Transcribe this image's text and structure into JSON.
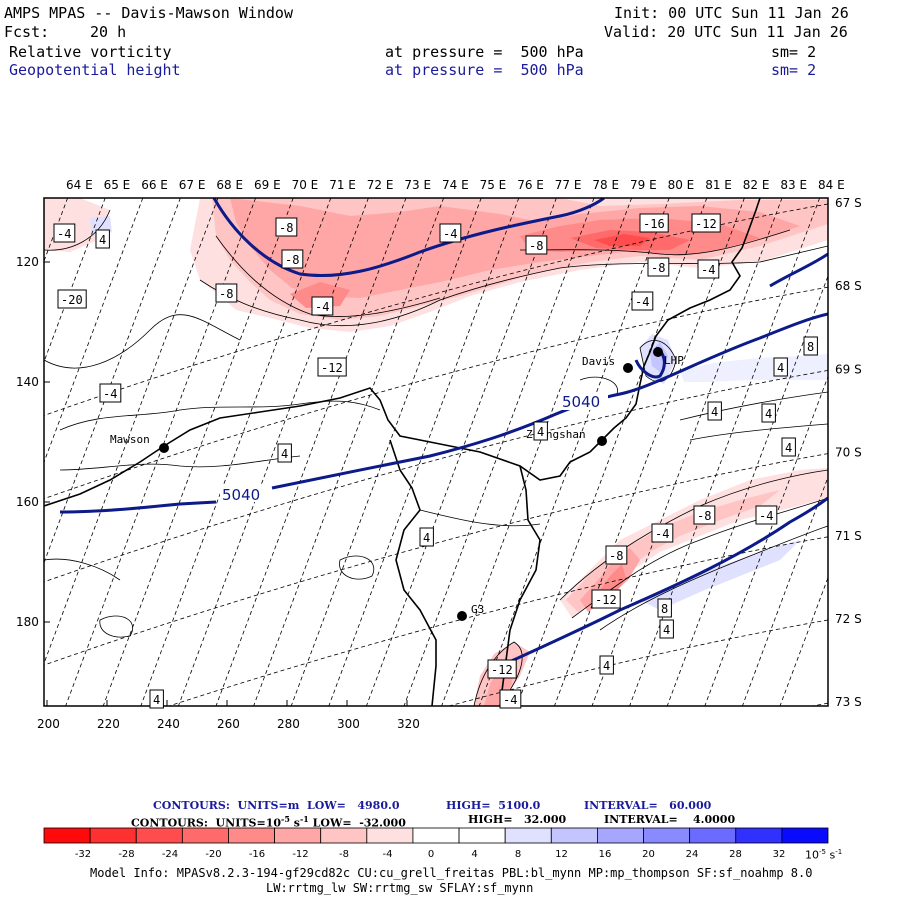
{
  "header": {
    "title": "AMPS MPAS -- Davis-Mawson Window",
    "fcst_label": "Fcst:",
    "fcst_value": "20 h",
    "init": "Init: 00 UTC Sun 11 Jan 26",
    "valid": "Valid: 20 UTC Sun 11 Jan 26"
  },
  "fields": [
    {
      "name": "Relative vorticity",
      "level": "at pressure =  500 hPa",
      "sm": "sm= 2",
      "color": "#000000"
    },
    {
      "name": "Geopotential height",
      "level": "at pressure =  500 hPa",
      "sm": "sm= 2",
      "color": "#1a1a9c"
    }
  ],
  "axes": {
    "top_lon": [
      "64 E",
      "65 E",
      "66 E",
      "67 E",
      "68 E",
      "69 E",
      "70 E",
      "71 E",
      "72 E",
      "73 E",
      "74 E",
      "75 E",
      "76 E",
      "77 E",
      "78 E",
      "79 E",
      "80 E",
      "81 E",
      "82 E",
      "83 E",
      "84 E"
    ],
    "right_lat": [
      "67 S",
      "68 S",
      "69 S",
      "70 S",
      "71 S",
      "72 S",
      "73 S"
    ],
    "bottom_x": [
      "200",
      "220",
      "240",
      "260",
      "280",
      "300",
      "320"
    ],
    "left_y": [
      "120",
      "140",
      "160",
      "180"
    ]
  },
  "stations": [
    {
      "name": "Mawson"
    },
    {
      "name": "Davis"
    },
    {
      "name": "LHP"
    },
    {
      "name": "Zhongshan"
    },
    {
      "name": "G3"
    }
  ],
  "contour_labels": {
    "height": [
      "5040",
      "5040"
    ],
    "vorticity": [
      "-4",
      "4",
      "-8",
      "-8",
      "-4",
      "-8",
      "-16",
      "-12",
      "-8",
      "-4",
      "-20",
      "-8",
      "-4",
      "-12",
      "-4",
      "-4",
      "8",
      "4",
      "4",
      "4",
      "4",
      "4",
      "4",
      "-8",
      "-4",
      "-4",
      "-8",
      "-12",
      "8",
      "4",
      "4",
      "4",
      "-12",
      "-4",
      "4"
    ]
  },
  "footer": {
    "line1_contours": "CONTOURS:  UNITS=m  LOW=   4980.0",
    "line1_high": "HIGH=  5100.0",
    "line1_interval": "INTERVAL=   60.000",
    "line2_contours": "CONTOURS:  UNITS=10",
    "line2_exp": "-5",
    "line2_unit": " s",
    "line2_unit_exp": "-1",
    "line2_low": " LOW=  -32.000",
    "line2_high": "HIGH=   32.000",
    "line2_interval": "INTERVAL=    4.0000",
    "colorbar_ticks": [
      "-32",
      "-28",
      "-24",
      "-20",
      "-16",
      "-12",
      "-8",
      "-4",
      "0",
      "4",
      "8",
      "12",
      "16",
      "20",
      "24",
      "28",
      "32"
    ],
    "colorbar_units": "10",
    "colorbar_units_exp1": "-5",
    "colorbar_units_s": " s",
    "colorbar_units_exp2": "-1",
    "colorbar_colors": [
      "#ff0a0a",
      "#ff3030",
      "#ff4d4d",
      "#ff6b6b",
      "#ff8a8a",
      "#ffa6a6",
      "#ffc4c4",
      "#ffe0e0",
      "#ffffff",
      "#ffffff",
      "#e0e0ff",
      "#c4c4ff",
      "#a6a6ff",
      "#8a8aff",
      "#6b6bff",
      "#3030ff",
      "#0a0aff"
    ],
    "model_info": "Model Info: MPASv8.2.3-194-gf29cd82c CU:cu_grell_freitas PBL:bl_mynn MP:mp_thompson SF:sf_noahmp 8.0",
    "model_info2": "LW:rrtmg_lw SW:rrtmg_sw SFLAY:sf_mynn"
  }
}
